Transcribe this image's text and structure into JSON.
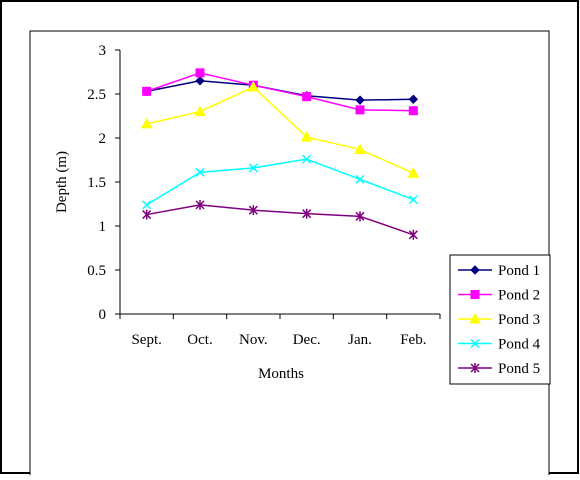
{
  "chart_data": {
    "type": "line",
    "title": "",
    "xlabel": "Months",
    "ylabel": "Depth (m)",
    "categories": [
      "Sept.",
      "Oct.",
      "Nov.",
      "Dec.",
      "Jan.",
      "Feb."
    ],
    "ylim": [
      0,
      3
    ],
    "yticks": [
      "0",
      "0.5",
      "1",
      "1.5",
      "2",
      "2.5",
      "3"
    ],
    "ytick_values": [
      0,
      0.5,
      1,
      1.5,
      2,
      2.5,
      3
    ],
    "grid": false,
    "legend_position": "right",
    "series": [
      {
        "name": "Pond 1",
        "color": "#000080",
        "marker": "diamond",
        "values": [
          2.53,
          2.65,
          2.6,
          2.48,
          2.43,
          2.44
        ]
      },
      {
        "name": "Pond 2",
        "color": "#FF00FF",
        "marker": "square",
        "values": [
          2.53,
          2.74,
          2.6,
          2.47,
          2.32,
          2.31
        ]
      },
      {
        "name": "Pond 3",
        "color": "#FFFF00",
        "marker": "triangle",
        "values": [
          2.16,
          2.3,
          2.58,
          2.01,
          1.87,
          1.6
        ]
      },
      {
        "name": "Pond 4",
        "color": "#00FFFF",
        "marker": "x",
        "values": [
          1.24,
          1.61,
          1.66,
          1.76,
          1.53,
          1.3
        ]
      },
      {
        "name": "Pond 5",
        "color": "#800080",
        "marker": "star",
        "values": [
          1.13,
          1.24,
          1.18,
          1.14,
          1.11,
          0.9
        ]
      }
    ]
  }
}
